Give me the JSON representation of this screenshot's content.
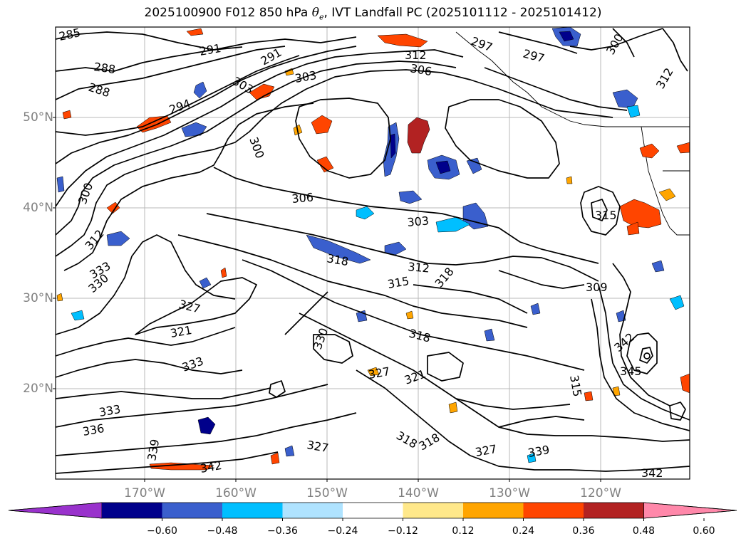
{
  "title": {
    "prefix": "2025100900 F012 850 hPa ",
    "theta_symbol": "θ",
    "theta_subscript": "e",
    "suffix": ", IVT Landfall PC (2025101112 - 2025101412)"
  },
  "map": {
    "latitude_labels": [
      "50°N",
      "40°N",
      "30°N",
      "20°N"
    ],
    "longitude_labels": [
      "170°W",
      "160°W",
      "150°W",
      "140°W",
      "130°W",
      "120°W"
    ],
    "gridlines": true,
    "contour_color": "#000000",
    "contour_labels": [
      "285",
      "291",
      "288",
      "288",
      "303",
      "294",
      "291",
      "303",
      "297",
      "300",
      "297",
      "312",
      "306",
      "312",
      "300",
      "306",
      "303",
      "300",
      "315",
      "318",
      "312",
      "318",
      "315",
      "312",
      "309",
      "333",
      "330",
      "327",
      "321",
      "318",
      "330",
      "333",
      "327",
      "321",
      "315",
      "318",
      "327",
      "339",
      "342",
      "336",
      "333",
      "339",
      "342",
      "345",
      "342",
      "318",
      "327"
    ]
  },
  "colorbar": {
    "tick_labels": [
      "−0.60",
      "−0.48",
      "−0.36",
      "−0.24",
      "−0.12",
      "0.12",
      "0.24",
      "0.36",
      "0.48",
      "0.60"
    ],
    "colors": [
      "#9932cc",
      "#00008b",
      "#3a5fcd",
      "#00bfff",
      "#afe3ff",
      "#ffffff",
      "#ffe88a",
      "#ffa500",
      "#ff4500",
      "#b22222",
      "#ff88aa"
    ]
  }
}
